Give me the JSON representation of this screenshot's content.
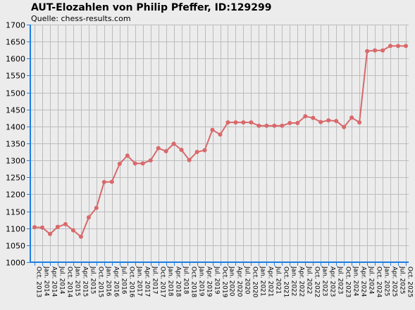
{
  "title": "AUT-Elozahlen von Philip Pfeffer, ID:129299",
  "subtitle": "Quelle: chess-results.com",
  "colors": {
    "series": "#d9686a",
    "axis": "#1e7fe0",
    "grid": "#bcbcbc",
    "background": "#ececec"
  },
  "chart_data": {
    "type": "line",
    "title": "AUT-Elozahlen von Philip Pfeffer, ID:129299",
    "subtitle": "Quelle: chess-results.com",
    "xlabel": "",
    "ylabel": "",
    "ylim": [
      1000,
      1700
    ],
    "yticks": [
      1000,
      1050,
      1100,
      1150,
      1200,
      1250,
      1300,
      1350,
      1400,
      1450,
      1500,
      1550,
      1600,
      1650,
      1700
    ],
    "grid": true,
    "categories": [
      "Oct. 2013",
      "Jan. 2014",
      "Apr. 2014",
      "Jul. 2014",
      "Oct. 2014",
      "Jan. 2015",
      "Apr. 2015",
      "Jul. 2015",
      "Oct. 2015",
      "Jan. 2016",
      "Apr. 2016",
      "Jul. 2016",
      "Oct. 2016",
      "Jan. 2017",
      "Apr. 2017",
      "Jul. 2017",
      "Oct. 2017",
      "Jan. 2018",
      "Apr. 2018",
      "Jul. 2018",
      "Oct. 2018",
      "Jan. 2019",
      "Apr. 2019",
      "Jul. 2019",
      "Oct. 2019",
      "Jan. 2020",
      "Apr. 2020",
      "Jul. 2020",
      "Oct. 2020",
      "Jan. 2021",
      "Apr. 2021",
      "Jul. 2021",
      "Oct. 2021",
      "Jan. 2022",
      "Apr. 2022",
      "Jul. 2022",
      "Oct. 2022",
      "Jan. 2023",
      "Apr. 2023",
      "Jul. 2023",
      "Oct. 2023",
      "Jan. 2024",
      "Apr. 2024",
      "Jul. 2024",
      "Oct. 2024",
      "Jan. 2025",
      "Apr. 2025",
      "Jul. 2025",
      "Oct. 2025"
    ],
    "series": [
      {
        "values": [
          1103,
          1102,
          1083,
          1104,
          1112,
          1094,
          1075,
          1132,
          1160,
          1236,
          1237,
          1290,
          1314,
          1291,
          1291,
          1300,
          1336,
          1327,
          1349,
          1331,
          1301,
          1325,
          1330,
          1390,
          1376,
          1412,
          1412,
          1412,
          1412,
          1402,
          1402,
          1402,
          1402,
          1410,
          1410,
          1430,
          1425,
          1413,
          1418,
          1416,
          1398,
          1426,
          1412,
          1622,
          1624,
          1624,
          1637,
          1637,
          1637
        ]
      }
    ]
  }
}
